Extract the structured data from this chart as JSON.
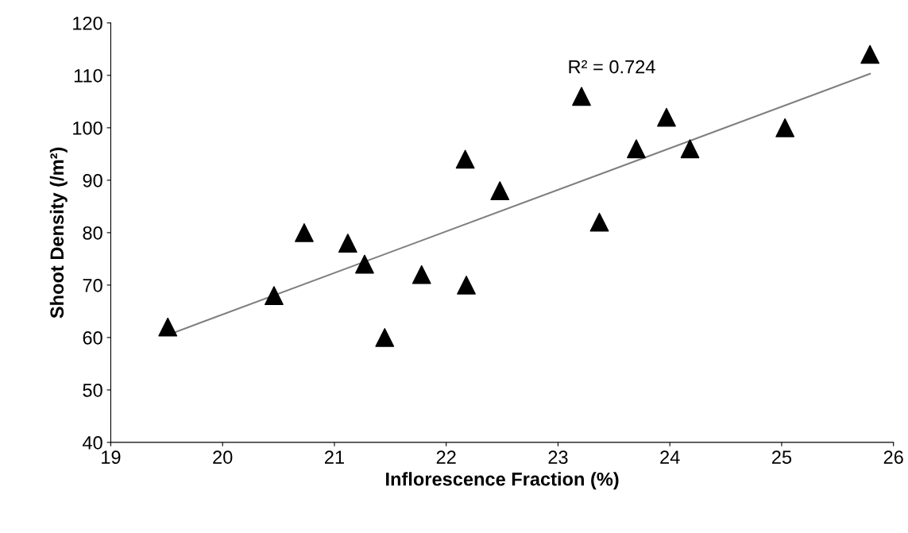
{
  "chart_data": {
    "type": "scatter",
    "xlabel": "Inflorescence Fraction (%)",
    "ylabel": "Shoot Density (/m²)",
    "x": [
      19.51,
      20.46,
      20.73,
      21.12,
      21.27,
      21.45,
      21.78,
      22.18,
      22.17,
      22.48,
      23.21,
      23.37,
      23.7,
      23.97,
      24.18,
      25.03,
      25.79
    ],
    "series": [
      {
        "color": "#000000",
        "marker": "triangle",
        "values": [
          62,
          68,
          80,
          78,
          74,
          60,
          72,
          70,
          94,
          88,
          106,
          82,
          96,
          102,
          96,
          100,
          114
        ]
      },
      {
        "type": "line",
        "color": "#7f7f7f",
        "marker": "none",
        "x": [
          19.51,
          25.79
        ],
        "values": [
          60.5,
          110.3
        ]
      }
    ],
    "annotations": [
      "R² = 0.724"
    ],
    "xlim": [
      19,
      26
    ],
    "xticks": [
      19,
      20,
      21,
      22,
      23,
      24,
      25,
      26
    ],
    "ylim": [
      40,
      120
    ],
    "yticks": [
      40,
      50,
      60,
      70,
      80,
      90,
      100,
      110,
      120
    ],
    "grid": false,
    "legend": false
  }
}
